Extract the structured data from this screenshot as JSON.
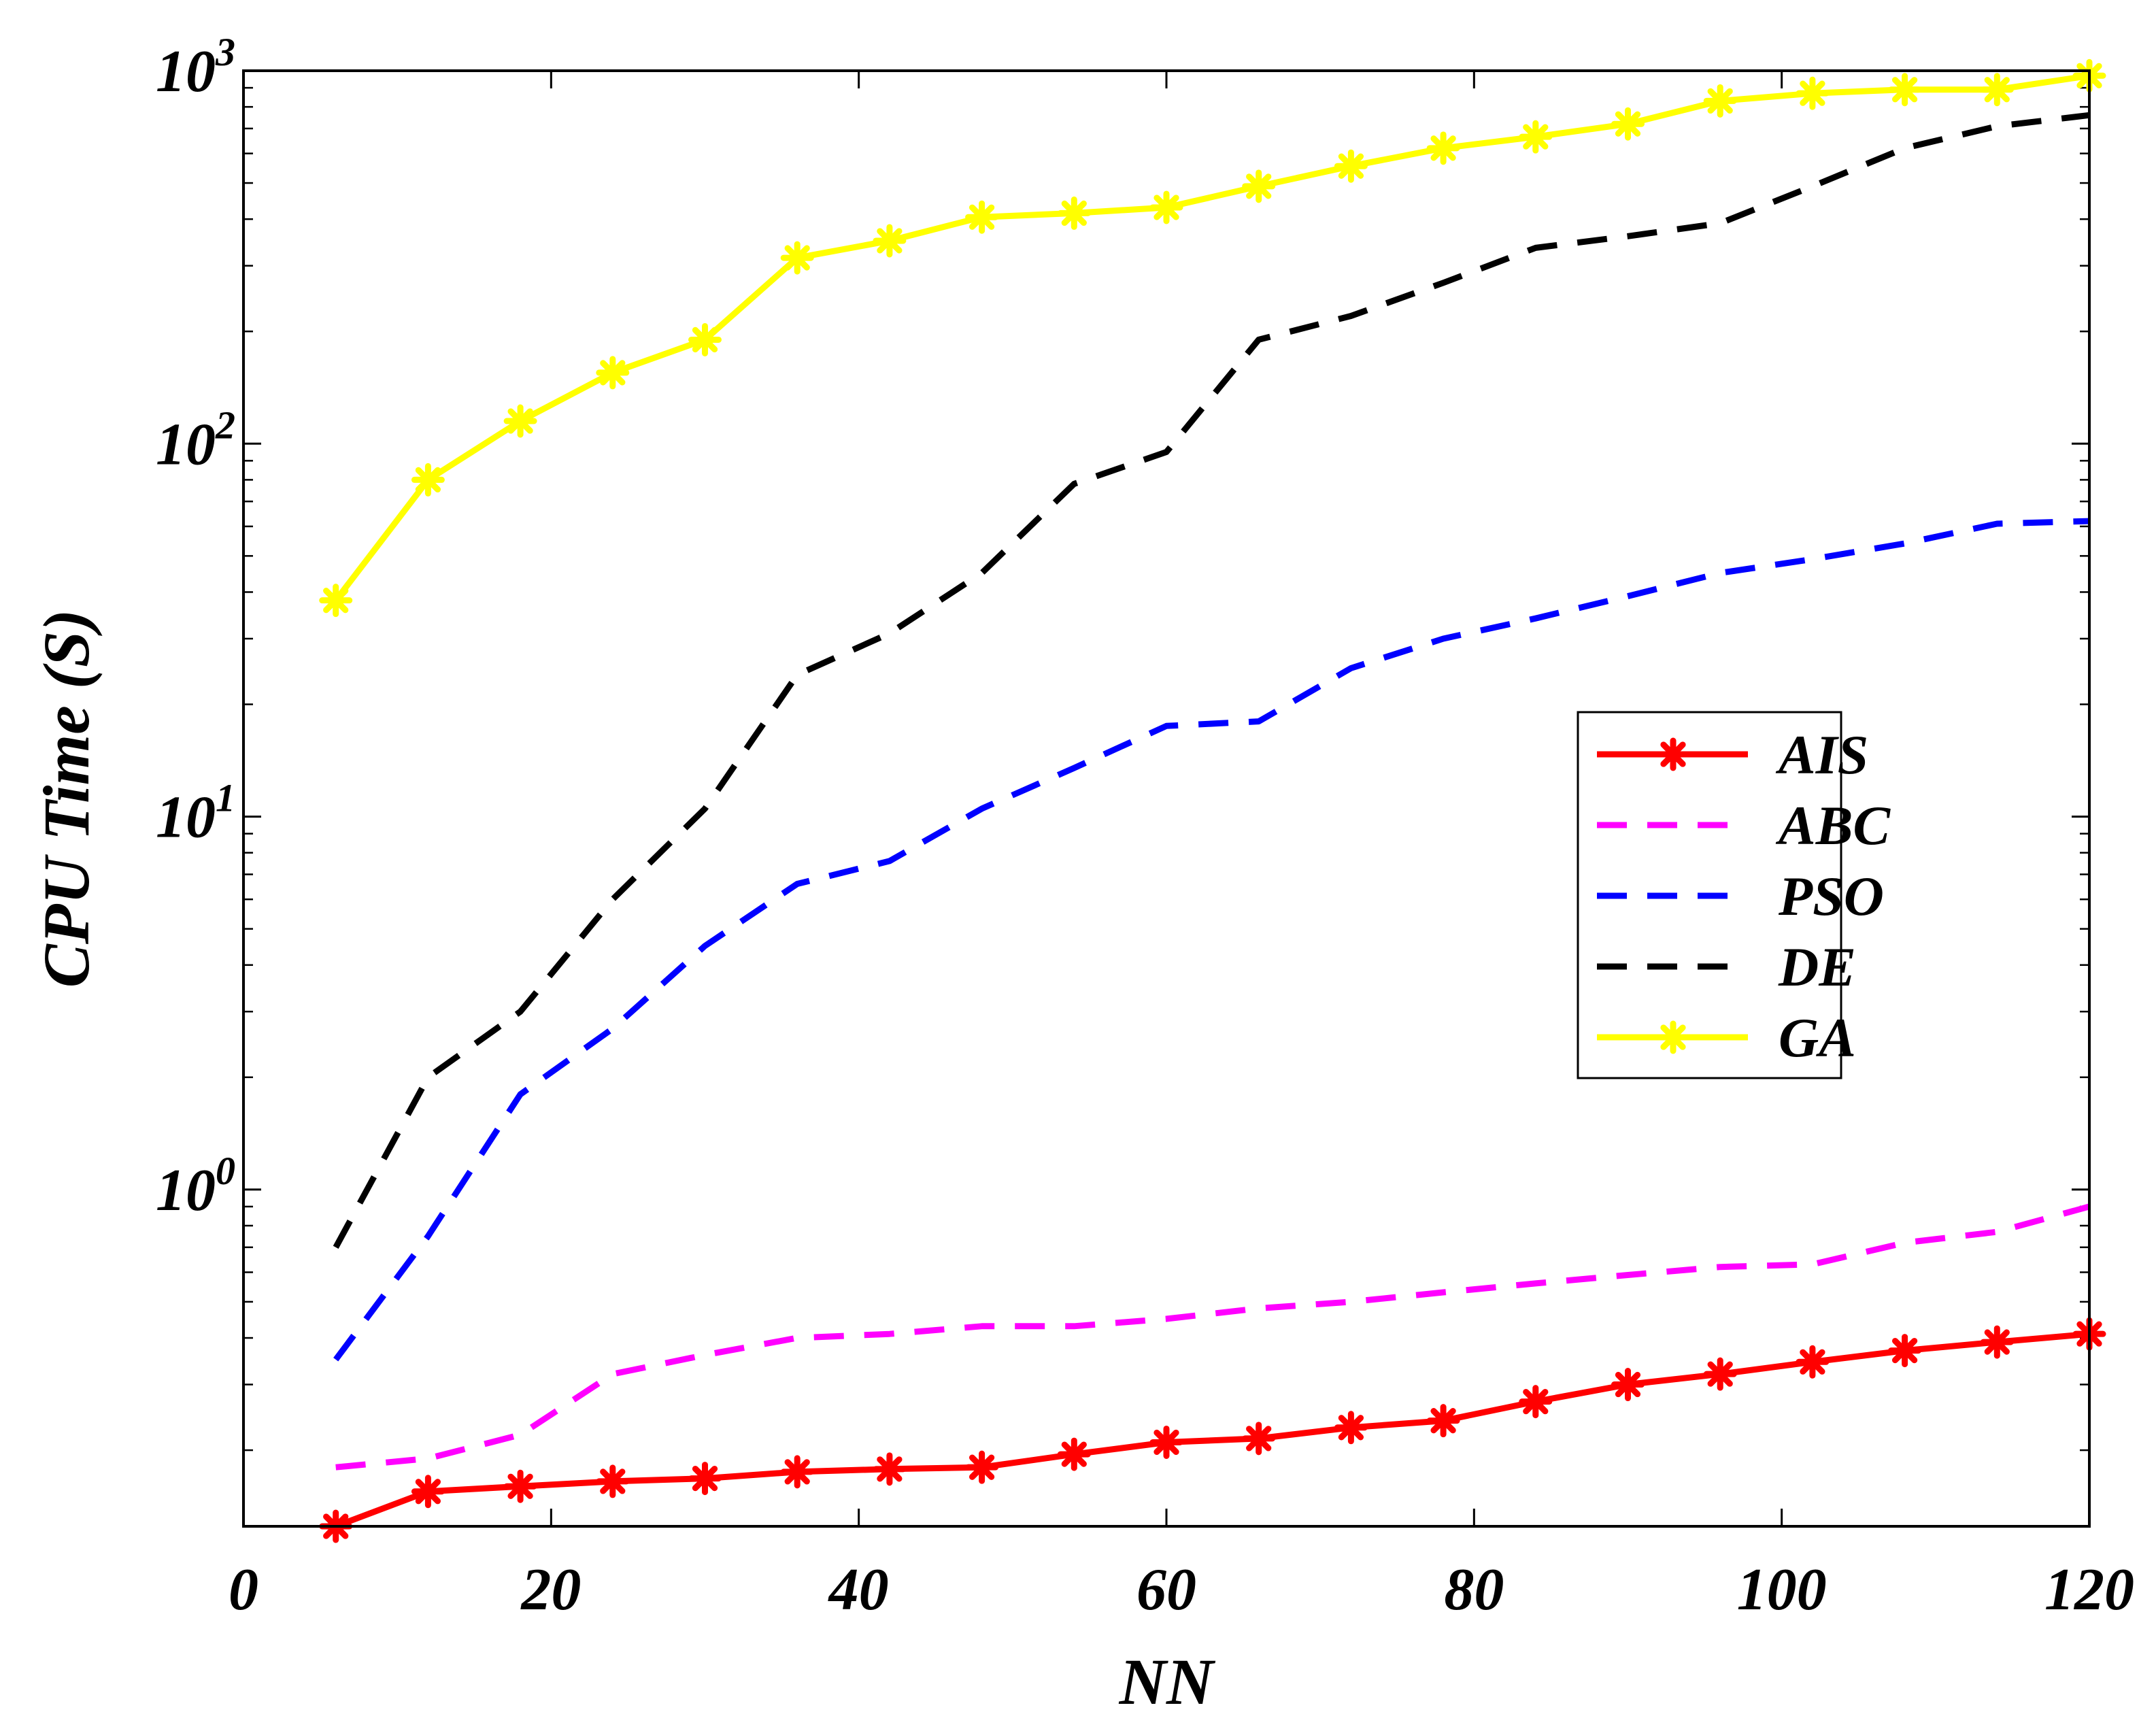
{
  "chart_data": {
    "type": "line",
    "title": "",
    "xlabel": "NN",
    "ylabel": "CPU Time (S)",
    "xlim": [
      0,
      120
    ],
    "ylim": [
      0.125,
      1000
    ],
    "yscale": "log",
    "xticks": [
      0,
      20,
      40,
      60,
      80,
      100,
      120
    ],
    "xtick_labels": [
      "0",
      "20",
      "40",
      "60",
      "80",
      "100",
      "120"
    ],
    "yticks": [
      1,
      10,
      100,
      1000
    ],
    "ytick_labels": [
      {
        "base": "10",
        "exp": "0"
      },
      {
        "base": "10",
        "exp": "1"
      },
      {
        "base": "10",
        "exp": "2"
      },
      {
        "base": "10",
        "exp": "3"
      }
    ],
    "grid": false,
    "legend_position": "center-right",
    "x": [
      6,
      12,
      18,
      24,
      30,
      36,
      42,
      48,
      54,
      60,
      66,
      72,
      78,
      84,
      90,
      96,
      102,
      108,
      114,
      120
    ],
    "series": [
      {
        "name": "AIS",
        "color": "#ff0000",
        "style": "solid",
        "marker": "star",
        "values": [
          0.125,
          0.155,
          0.16,
          0.165,
          0.168,
          0.175,
          0.178,
          0.18,
          0.195,
          0.21,
          0.215,
          0.23,
          0.24,
          0.27,
          0.3,
          0.32,
          0.345,
          0.37,
          0.39,
          0.41
        ]
      },
      {
        "name": "ABC",
        "color": "#ff00ff",
        "style": "dashed",
        "marker": "none",
        "values": [
          0.18,
          0.19,
          0.22,
          0.32,
          0.36,
          0.4,
          0.41,
          0.43,
          0.43,
          0.45,
          0.48,
          0.5,
          0.53,
          0.56,
          0.59,
          0.62,
          0.63,
          0.72,
          0.77,
          0.9
        ]
      },
      {
        "name": "PSO",
        "color": "#0000ff",
        "style": "dashed",
        "marker": "none",
        "values": [
          0.35,
          0.75,
          1.8,
          2.7,
          4.5,
          6.6,
          7.6,
          10.5,
          13.5,
          17.5,
          18.0,
          25,
          30,
          34,
          39,
          45,
          49,
          54,
          61,
          62
        ]
      },
      {
        "name": "DE",
        "color": "#000000",
        "style": "dashed",
        "marker": "none",
        "values": [
          0.7,
          2.0,
          3.0,
          6.0,
          10.5,
          24,
          31,
          45,
          78,
          95,
          190,
          220,
          270,
          335,
          360,
          390,
          490,
          620,
          710,
          760
        ]
      },
      {
        "name": "GA",
        "color": "#ffff00",
        "style": "solid",
        "marker": "star",
        "values": [
          38,
          80,
          115,
          155,
          190,
          315,
          350,
          405,
          415,
          430,
          490,
          555,
          620,
          665,
          720,
          830,
          870,
          890,
          890,
          970
        ]
      }
    ]
  }
}
